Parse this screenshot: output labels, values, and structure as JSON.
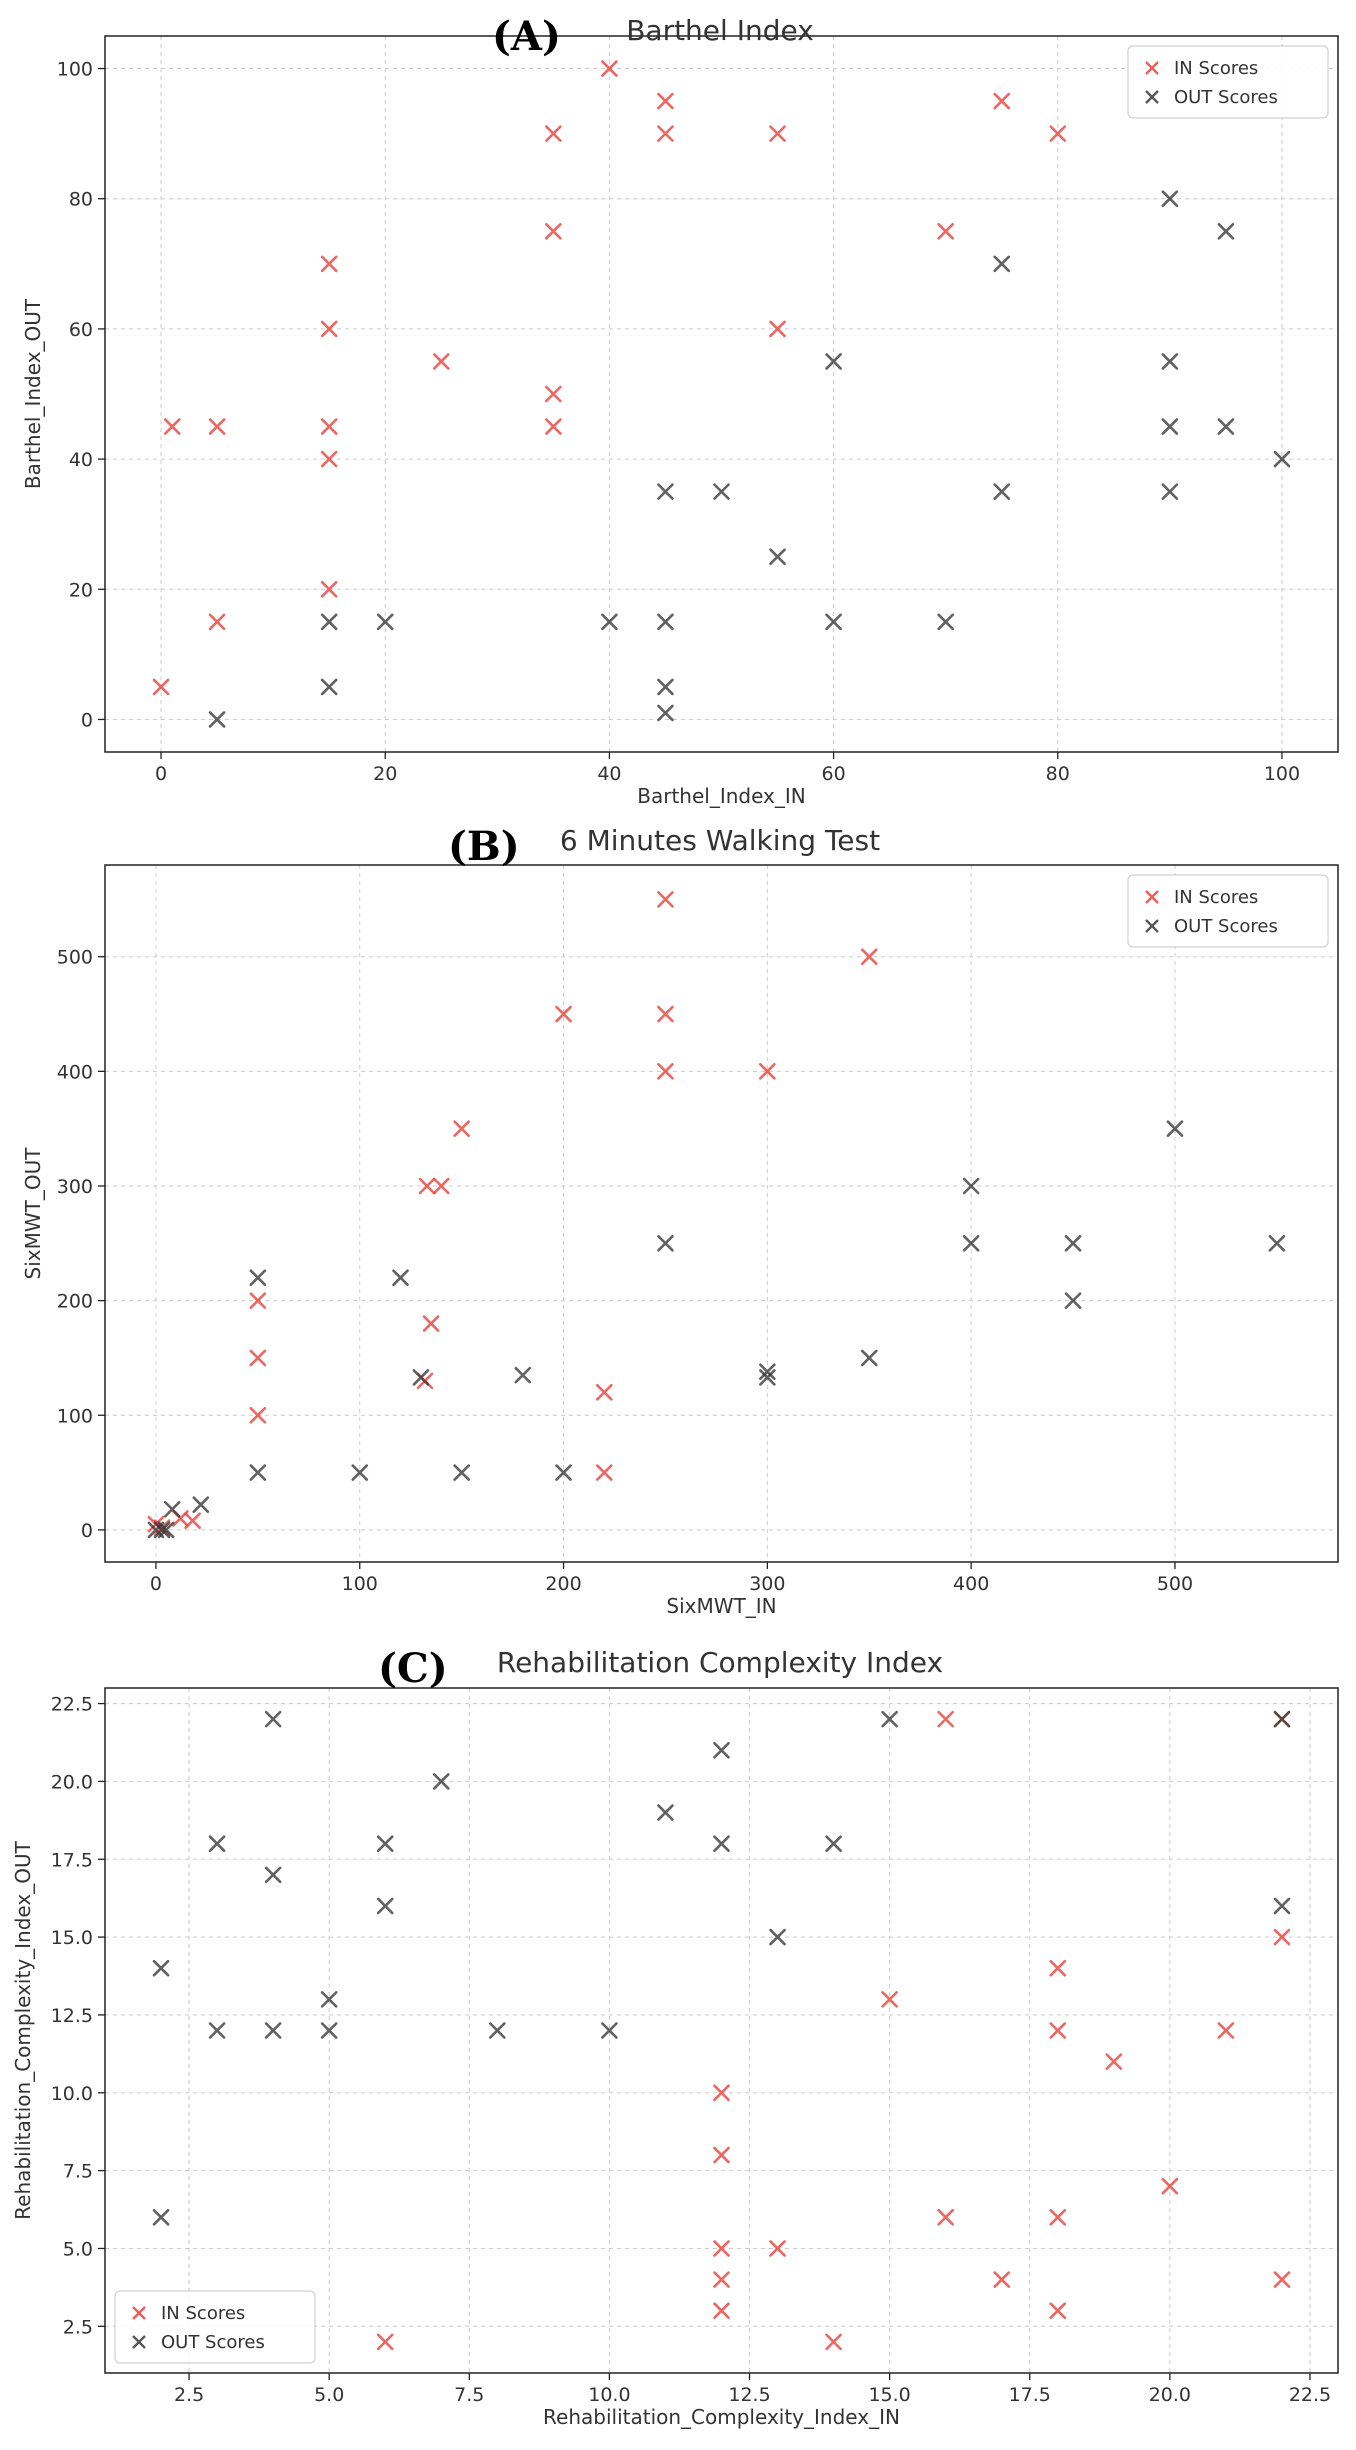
{
  "chart_data": [
    {
      "type": "scatter",
      "panel": "(A)",
      "title": "Barthel Index",
      "xlabel": "Barthel_Index_IN",
      "ylabel": "Barthel_Index_OUT",
      "xlim": [
        -5,
        105
      ],
      "ylim": [
        -5,
        105
      ],
      "xticks": [
        0,
        20,
        40,
        60,
        80,
        100
      ],
      "yticks": [
        0,
        20,
        40,
        60,
        80,
        100
      ],
      "grid": true,
      "legend_position": "top-right",
      "series": [
        {
          "name": "IN Scores",
          "color": "#e8413c",
          "points": [
            [
              0,
              5
            ],
            [
              1,
              45
            ],
            [
              5,
              45
            ],
            [
              5,
              15
            ],
            [
              15,
              70
            ],
            [
              15,
              60
            ],
            [
              15,
              45
            ],
            [
              15,
              40
            ],
            [
              15,
              20
            ],
            [
              25,
              55
            ],
            [
              35,
              90
            ],
            [
              35,
              75
            ],
            [
              35,
              50
            ],
            [
              35,
              45
            ],
            [
              40,
              100
            ],
            [
              45,
              95
            ],
            [
              45,
              90
            ],
            [
              55,
              90
            ],
            [
              55,
              60
            ],
            [
              70,
              75
            ],
            [
              75,
              95
            ],
            [
              80,
              90
            ]
          ]
        },
        {
          "name": "OUT Scores",
          "color": "#3a3a3a",
          "points": [
            [
              5,
              0
            ],
            [
              15,
              15
            ],
            [
              15,
              5
            ],
            [
              20,
              15
            ],
            [
              40,
              15
            ],
            [
              45,
              35
            ],
            [
              45,
              15
            ],
            [
              45,
              5
            ],
            [
              45,
              1
            ],
            [
              50,
              35
            ],
            [
              55,
              25
            ],
            [
              60,
              55
            ],
            [
              60,
              15
            ],
            [
              70,
              15
            ],
            [
              75,
              70
            ],
            [
              75,
              35
            ],
            [
              90,
              80
            ],
            [
              90,
              55
            ],
            [
              90,
              45
            ],
            [
              90,
              35
            ],
            [
              95,
              75
            ],
            [
              95,
              45
            ],
            [
              100,
              40
            ]
          ]
        }
      ]
    },
    {
      "type": "scatter",
      "panel": "(B)",
      "title": "6 Minutes Walking Test",
      "xlabel": "SixMWT_IN",
      "ylabel": "SixMWT_OUT",
      "xlim": [
        -25,
        580
      ],
      "ylim": [
        -28,
        580
      ],
      "xticks": [
        0,
        100,
        200,
        300,
        400,
        500
      ],
      "yticks": [
        0,
        100,
        200,
        300,
        400,
        500
      ],
      "grid": true,
      "legend_position": "top-right",
      "series": [
        {
          "name": "IN Scores",
          "color": "#e8413c",
          "points": [
            [
              0,
              5
            ],
            [
              3,
              2
            ],
            [
              12,
              10
            ],
            [
              18,
              8
            ],
            [
              50,
              200
            ],
            [
              50,
              150
            ],
            [
              50,
              100
            ],
            [
              132,
              130
            ],
            [
              133,
              300
            ],
            [
              135,
              180
            ],
            [
              140,
              300
            ],
            [
              150,
              350
            ],
            [
              200,
              450
            ],
            [
              220,
              120
            ],
            [
              220,
              50
            ],
            [
              250,
              550
            ],
            [
              250,
              450
            ],
            [
              250,
              400
            ],
            [
              300,
              400
            ],
            [
              350,
              500
            ]
          ]
        },
        {
          "name": "OUT Scores",
          "color": "#3a3a3a",
          "points": [
            [
              0,
              0
            ],
            [
              3,
              0
            ],
            [
              5,
              0
            ],
            [
              8,
              18
            ],
            [
              22,
              22
            ],
            [
              50,
              220
            ],
            [
              50,
              50
            ],
            [
              100,
              50
            ],
            [
              120,
              220
            ],
            [
              130,
              133
            ],
            [
              150,
              50
            ],
            [
              180,
              135
            ],
            [
              200,
              50
            ],
            [
              250,
              250
            ],
            [
              300,
              138
            ],
            [
              300,
              133
            ],
            [
              350,
              150
            ],
            [
              400,
              300
            ],
            [
              400,
              250
            ],
            [
              450,
              250
            ],
            [
              450,
              200
            ],
            [
              500,
              350
            ],
            [
              550,
              250
            ]
          ]
        }
      ]
    },
    {
      "type": "scatter",
      "panel": "(C)",
      "title": "Rehabilitation Complexity Index",
      "xlabel": "Rehabilitation_Complexity_Index_IN",
      "ylabel": "Rehabilitation_Complexity_Index_OUT",
      "xlim": [
        1.0,
        23.0
      ],
      "ylim": [
        1.0,
        23.0
      ],
      "xticks": [
        2.5,
        5.0,
        7.5,
        10.0,
        12.5,
        15.0,
        17.5,
        20.0,
        22.5
      ],
      "yticks": [
        2.5,
        5.0,
        7.5,
        10.0,
        12.5,
        15.0,
        17.5,
        20.0,
        22.5
      ],
      "grid": true,
      "legend_position": "bottom-left",
      "series": [
        {
          "name": "IN Scores",
          "color": "#e8413c",
          "points": [
            [
              6,
              2
            ],
            [
              12,
              10
            ],
            [
              12,
              8
            ],
            [
              12,
              5
            ],
            [
              12,
              4
            ],
            [
              12,
              3
            ],
            [
              13,
              5
            ],
            [
              14,
              2
            ],
            [
              15,
              13
            ],
            [
              16,
              22
            ],
            [
              16,
              6
            ],
            [
              17,
              4
            ],
            [
              18,
              14
            ],
            [
              18,
              12
            ],
            [
              18,
              6
            ],
            [
              18,
              3
            ],
            [
              19,
              11
            ],
            [
              20,
              7
            ],
            [
              21,
              12
            ],
            [
              22,
              22
            ],
            [
              22,
              15
            ],
            [
              22,
              4
            ]
          ]
        },
        {
          "name": "OUT Scores",
          "color": "#3a3a3a",
          "points": [
            [
              2,
              14
            ],
            [
              2,
              6
            ],
            [
              3,
              18
            ],
            [
              3,
              12
            ],
            [
              4,
              22
            ],
            [
              4,
              17
            ],
            [
              4,
              12
            ],
            [
              5,
              13
            ],
            [
              5,
              12
            ],
            [
              6,
              18
            ],
            [
              6,
              16
            ],
            [
              7,
              20
            ],
            [
              8,
              12
            ],
            [
              10,
              12
            ],
            [
              11,
              19
            ],
            [
              12,
              21
            ],
            [
              12,
              18
            ],
            [
              13,
              15
            ],
            [
              14,
              18
            ],
            [
              15,
              22
            ],
            [
              22,
              22
            ],
            [
              22,
              16
            ]
          ]
        }
      ]
    }
  ]
}
